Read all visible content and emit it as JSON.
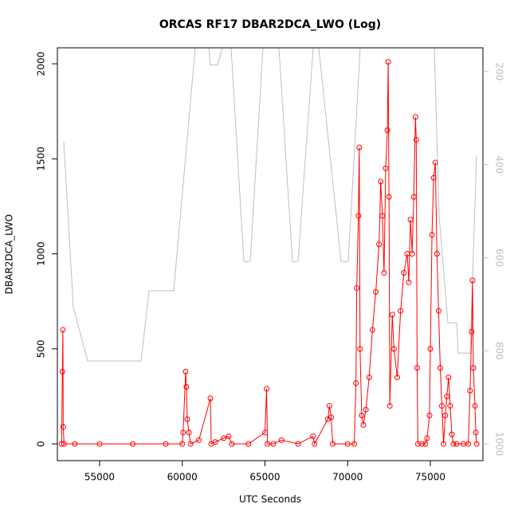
{
  "chart_data": {
    "type": "scatter-line",
    "title": "ORCAS RF17 DBAR2DCA_LWO (Log)",
    "x_label": "UTC Seconds",
    "y_label": "DBAR2DCA_LWO",
    "color": "#ff0000",
    "x": [
      52700,
      52750,
      52780,
      52800,
      52850,
      53500,
      55000,
      57000,
      59000,
      60000,
      60050,
      60200,
      60250,
      60300,
      60400,
      60500,
      61000,
      61700,
      61750,
      62000,
      62500,
      62800,
      63000,
      64000,
      65000,
      65100,
      65150,
      65500,
      66000,
      67000,
      67900,
      68000,
      68800,
      68900,
      69000,
      69100,
      70000,
      70400,
      70500,
      70550,
      70650,
      70700,
      70750,
      70850,
      70950,
      71100,
      71300,
      71500,
      71700,
      71900,
      72000,
      72100,
      72200,
      72300,
      72400,
      72450,
      72500,
      72550,
      72700,
      72800,
      73000,
      73200,
      73400,
      73600,
      73700,
      73800,
      73900,
      74000,
      74100,
      74150,
      74200,
      74250,
      74500,
      74700,
      74800,
      74950,
      75000,
      75100,
      75200,
      75300,
      75400,
      75500,
      75600,
      75700,
      75800,
      75900,
      76000,
      76100,
      76200,
      76300,
      76400,
      76600,
      77000,
      77300,
      77400,
      77500,
      77550,
      77600,
      77700,
      77750,
      77800
    ],
    "values": [
      0,
      380,
      600,
      90,
      0,
      0,
      0,
      0,
      0,
      0,
      60,
      380,
      300,
      130,
      60,
      0,
      20,
      240,
      0,
      10,
      30,
      40,
      0,
      0,
      60,
      290,
      0,
      0,
      20,
      0,
      40,
      0,
      130,
      200,
      140,
      0,
      0,
      0,
      320,
      820,
      1200,
      1560,
      500,
      150,
      100,
      180,
      350,
      600,
      800,
      1050,
      1380,
      1200,
      900,
      1450,
      1650,
      2010,
      1300,
      200,
      680,
      500,
      350,
      700,
      900,
      1000,
      850,
      1180,
      1000,
      1300,
      1720,
      1600,
      400,
      0,
      0,
      0,
      30,
      150,
      500,
      1100,
      1400,
      1480,
      1000,
      700,
      400,
      200,
      0,
      150,
      250,
      350,
      200,
      50,
      0,
      0,
      0,
      0,
      280,
      590,
      860,
      400,
      200,
      60,
      0
    ],
    "y2_series": {
      "axis": "y2",
      "color": "#bebebe",
      "x": [
        52832,
        53410,
        54277,
        57506,
        57988,
        59482,
        60783,
        61602,
        61699,
        62133,
        62422,
        62952,
        63723,
        64108,
        64880,
        65843,
        66663,
        67000,
        67916,
        68253,
        69602,
        70036,
        70759,
        71289,
        71771,
        75241,
        75530,
        76060,
        76590,
        76687,
        77410,
        77795
      ],
      "values": [
        351,
        706,
        822,
        822,
        671,
        671,
        149,
        149,
        186,
        186,
        149,
        149,
        608,
        608,
        149,
        149,
        608,
        608,
        149,
        149,
        608,
        608,
        149,
        149,
        149,
        149,
        509,
        740,
        740,
        805,
        805,
        380
      ]
    },
    "xlim": [
      52446,
      78181
    ],
    "xticks": [
      55000,
      60000,
      65000,
      70000,
      75000
    ],
    "ylim": [
      -88,
      2084
    ],
    "yticks": [
      0,
      500,
      1000,
      1500,
      2000
    ],
    "y2lim": [
      1036,
      149
    ],
    "y2ticks": [
      200,
      400,
      600,
      800,
      1000
    ]
  }
}
